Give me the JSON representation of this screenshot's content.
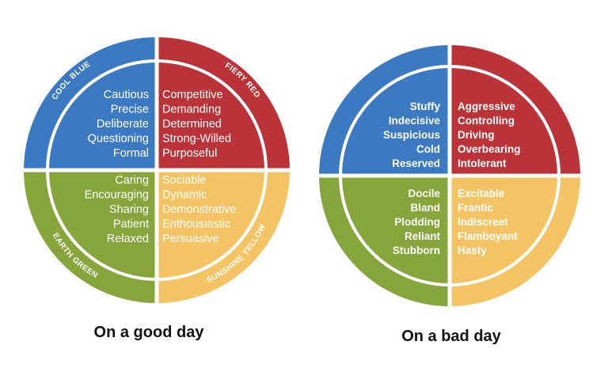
{
  "colors": {
    "blue": "#3b79c3",
    "red": "#bb3338",
    "green": "#86a53a",
    "yellow": "#f4c464"
  },
  "good_day": {
    "caption": "On a good day",
    "ring_labels": {
      "blue": "COOL BLUE",
      "red": "FIERY RED",
      "green": "EARTH GREEN",
      "yellow": "SUNSHINE YELLOW"
    },
    "blue_traits": [
      "Cautious",
      "Precise",
      "Deliberate",
      "Questioning",
      "Formal"
    ],
    "red_traits": [
      "Competitive",
      "Demanding",
      "Determined",
      "Strong-Willed",
      "Purposeful"
    ],
    "green_traits": [
      "Caring",
      "Encouraging",
      "Sharing",
      "Patient",
      "Relaxed"
    ],
    "yellow_traits": [
      "Sociable",
      "Dynamic",
      "Demonstrative",
      "Enthousiastic",
      "Persuasive"
    ]
  },
  "bad_day": {
    "caption": "On a bad day",
    "blue_traits": [
      "Stuffy",
      "Indecisive",
      "Suspicious",
      "Cold",
      "Reserved"
    ],
    "red_traits": [
      "Aggressive",
      "Controlling",
      "Driving",
      "Overbearing",
      "Intolerant"
    ],
    "green_traits": [
      "Docile",
      "Bland",
      "Plodding",
      "Reliant",
      "Stubborn"
    ],
    "yellow_traits": [
      "Excitable",
      "Frantic",
      "Indiscreet",
      "Flamboyant",
      "Hasty"
    ]
  }
}
